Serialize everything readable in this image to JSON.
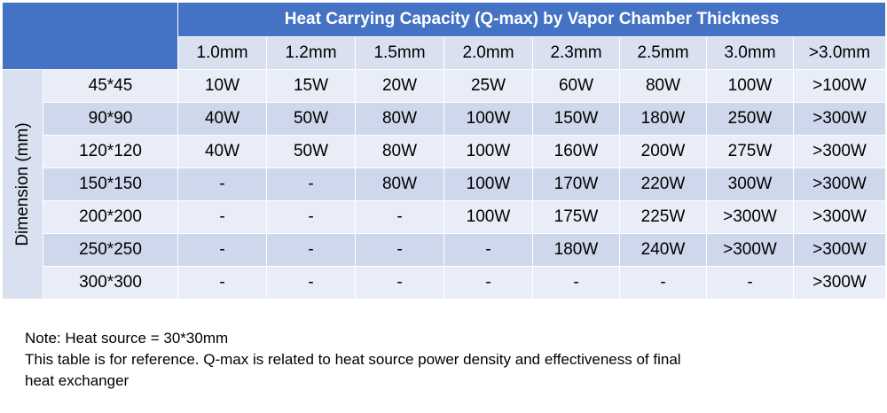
{
  "table": {
    "title": "Heat Carrying Capacity (Q-max) by Vapor Chamber Thickness",
    "thickness_headers": [
      "1.0mm",
      "1.2mm",
      "1.5mm",
      "2.0mm",
      "2.3mm",
      "2.5mm",
      "3.0mm",
      ">3.0mm"
    ],
    "dimension_axis_label": "Dimension (mm)",
    "rows": [
      {
        "dimension": "45*45",
        "values": [
          "10W",
          "15W",
          "20W",
          "25W",
          "60W",
          "80W",
          "100W",
          ">100W"
        ]
      },
      {
        "dimension": "90*90",
        "values": [
          "40W",
          "50W",
          "80W",
          "100W",
          "150W",
          "180W",
          "250W",
          ">300W"
        ]
      },
      {
        "dimension": "120*120",
        "values": [
          "40W",
          "50W",
          "80W",
          "100W",
          "160W",
          "200W",
          "275W",
          ">300W"
        ]
      },
      {
        "dimension": "150*150",
        "values": [
          "-",
          "-",
          "80W",
          "100W",
          "170W",
          "220W",
          "300W",
          ">300W"
        ]
      },
      {
        "dimension": "200*200",
        "values": [
          "-",
          "-",
          "-",
          "100W",
          "175W",
          "225W",
          ">300W",
          ">300W"
        ]
      },
      {
        "dimension": "250*250",
        "values": [
          "-",
          "-",
          "-",
          "-",
          "180W",
          "240W",
          ">300W",
          ">300W"
        ]
      },
      {
        "dimension": "300*300",
        "values": [
          "-",
          "-",
          "-",
          "-",
          "-",
          "-",
          "-",
          ">300W"
        ]
      }
    ]
  },
  "notes": {
    "line1": "Note: Heat source = 30*30mm",
    "line2": "This table is for reference. Q-max is related to heat source power density and effectiveness of final",
    "line3": "heat exchanger"
  },
  "colors": {
    "header_blue": "#4472c4",
    "row_light": "#e9edf7",
    "row_dark": "#cfd7ec"
  }
}
